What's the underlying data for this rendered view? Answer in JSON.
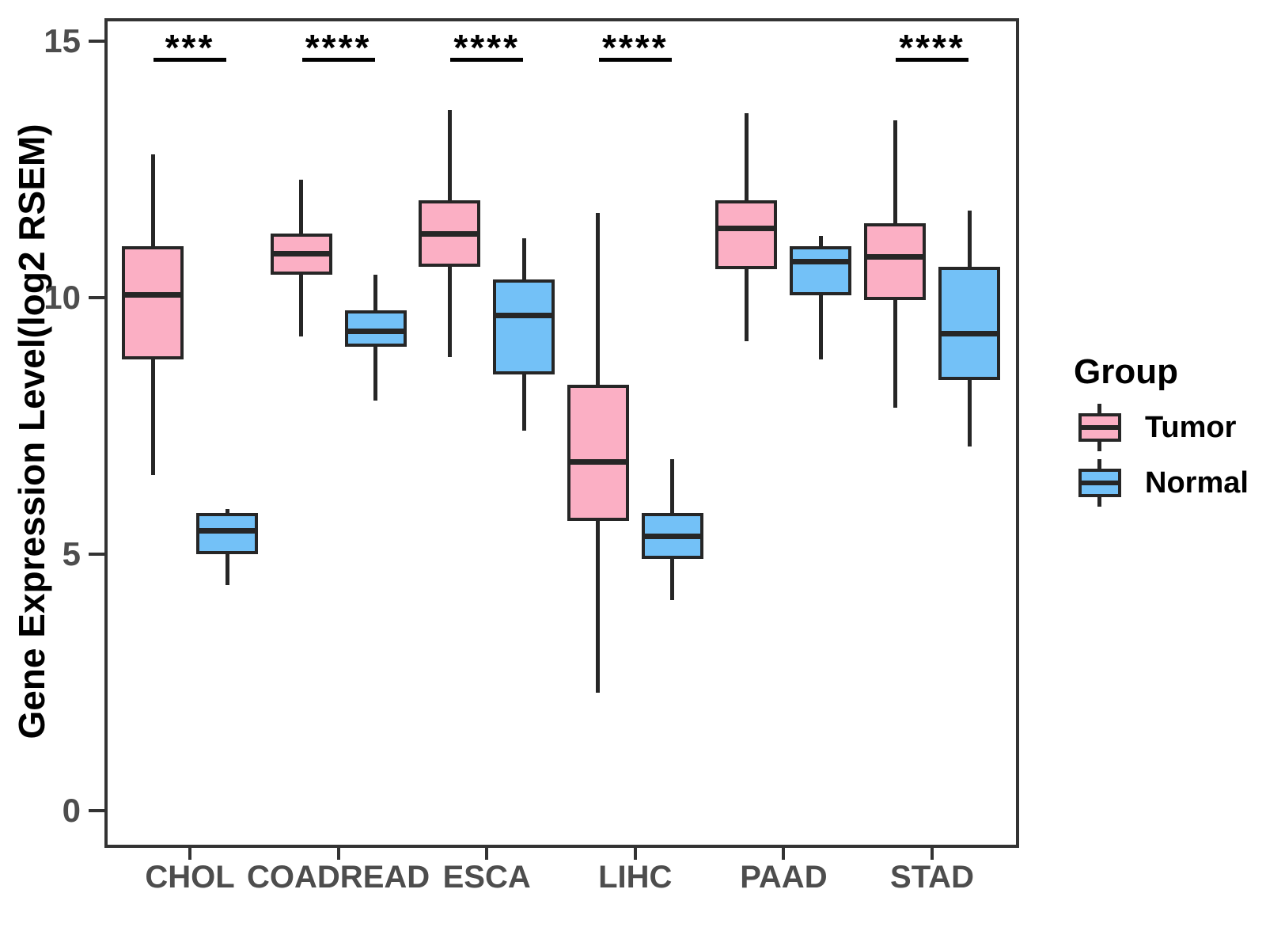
{
  "chart_data": {
    "type": "boxplot",
    "title": "",
    "xlabel": "",
    "ylabel": "Gene Expression Level(log2 RSEM)",
    "ylim": [
      -0.75,
      15.45
    ],
    "yticks": [
      "0",
      "5",
      "10",
      "15"
    ],
    "ytick_values": [
      0,
      5,
      10,
      15
    ],
    "grid": false,
    "categories": [
      "CHOL",
      "COADREAD",
      "ESCA",
      "LIHC",
      "PAAD",
      "STAD"
    ],
    "legend": {
      "title": "Group",
      "position": "right",
      "entries": [
        {
          "label": "Tumor",
          "color": "#FBAFC4"
        },
        {
          "label": "Normal",
          "color": "#73C1F7"
        }
      ]
    },
    "colors": {
      "tumor_fill": "#FBAFC4",
      "normal_fill": "#73C1F7",
      "box_line": "#262626",
      "plot_border": "#333333",
      "tick_text": "#4d4d4d",
      "sig_text": "#000000"
    },
    "series": [
      {
        "name": "Tumor",
        "color": "#FBAFC4",
        "boxes": [
          {
            "category": "CHOL",
            "low": 6.55,
            "q1": 8.8,
            "median": 10.05,
            "q3": 11.0,
            "high": 12.8
          },
          {
            "category": "COADREAD",
            "low": 9.25,
            "q1": 10.45,
            "median": 10.85,
            "q3": 11.25,
            "high": 12.3
          },
          {
            "category": "ESCA",
            "low": 8.85,
            "q1": 10.6,
            "median": 11.25,
            "q3": 11.9,
            "high": 13.65
          },
          {
            "category": "LIHC",
            "low": 2.3,
            "q1": 5.65,
            "median": 6.8,
            "q3": 8.3,
            "high": 11.65
          },
          {
            "category": "PAAD",
            "low": 9.15,
            "q1": 10.55,
            "median": 11.35,
            "q3": 11.9,
            "high": 13.6
          },
          {
            "category": "STAD",
            "low": 7.85,
            "q1": 9.95,
            "median": 10.8,
            "q3": 11.45,
            "high": 13.45
          }
        ]
      },
      {
        "name": "Normal",
        "color": "#73C1F7",
        "boxes": [
          {
            "category": "CHOL",
            "low": 4.4,
            "q1": 5.0,
            "median": 5.45,
            "q3": 5.8,
            "high": 5.88
          },
          {
            "category": "COADREAD",
            "low": 8.0,
            "q1": 9.05,
            "median": 9.35,
            "q3": 9.75,
            "high": 10.45
          },
          {
            "category": "ESCA",
            "low": 7.4,
            "q1": 8.5,
            "median": 9.65,
            "q3": 10.35,
            "high": 11.15
          },
          {
            "category": "LIHC",
            "low": 4.1,
            "q1": 4.9,
            "median": 5.35,
            "q3": 5.8,
            "high": 6.85
          },
          {
            "category": "PAAD",
            "low": 8.8,
            "q1": 10.05,
            "median": 10.7,
            "q3": 11.0,
            "high": 11.2
          },
          {
            "category": "STAD",
            "low": 7.1,
            "q1": 8.4,
            "median": 9.3,
            "q3": 10.6,
            "high": 11.7
          }
        ]
      }
    ],
    "significance": [
      {
        "category": "CHOL",
        "label": "***"
      },
      {
        "category": "COADREAD",
        "label": "****"
      },
      {
        "category": "ESCA",
        "label": "****"
      },
      {
        "category": "LIHC",
        "label": "****"
      },
      {
        "category": "STAD",
        "label": "****"
      }
    ]
  }
}
